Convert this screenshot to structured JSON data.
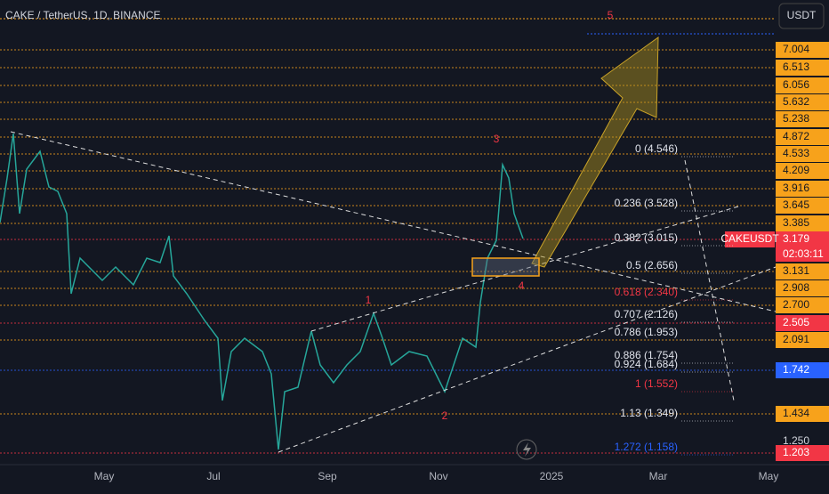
{
  "header": {
    "title": "CAKE / TetherUS, 1D, BINANCE",
    "currency": "USDT"
  },
  "price_axis": [
    {
      "label": "7.004",
      "kind": "level"
    },
    {
      "label": "6.513",
      "kind": "level"
    },
    {
      "label": "6.056",
      "kind": "level"
    },
    {
      "label": "5.632",
      "kind": "level"
    },
    {
      "label": "5.238",
      "kind": "level"
    },
    {
      "label": "4.872",
      "kind": "level"
    },
    {
      "label": "4.533",
      "kind": "level"
    },
    {
      "label": "4.209",
      "kind": "level"
    },
    {
      "label": "3.916",
      "kind": "level"
    },
    {
      "label": "3.645",
      "kind": "level"
    },
    {
      "label": "3.385",
      "kind": "level"
    },
    {
      "label": "3.179",
      "kind": "last"
    },
    {
      "label": "3.131",
      "kind": "level"
    },
    {
      "label": "2.908",
      "kind": "level"
    },
    {
      "label": "2.700",
      "kind": "level"
    },
    {
      "label": "2.505",
      "kind": "alert"
    },
    {
      "label": "2.091",
      "kind": "level"
    },
    {
      "label": "1.742",
      "kind": "blue"
    },
    {
      "label": "1.434",
      "kind": "level"
    },
    {
      "label": "1.250",
      "kind": "plain"
    },
    {
      "label": "1.203",
      "kind": "alert"
    }
  ],
  "last_price": {
    "symbol": "CAKEUSDT",
    "countdown": "02:03:11"
  },
  "fib_levels": [
    {
      "label": "0 (4.546)",
      "color": "white"
    },
    {
      "label": "0.236 (3.528)",
      "color": "white"
    },
    {
      "label": "0.382 (3.015)",
      "color": "white"
    },
    {
      "label": "0.5 (2.656)",
      "color": "white"
    },
    {
      "label": "0.618 (2.340)",
      "color": "red"
    },
    {
      "label": "0.707 (2.126)",
      "color": "white"
    },
    {
      "label": "0.786 (1.953)",
      "color": "white"
    },
    {
      "label": "0.886 (1.754)",
      "color": "white"
    },
    {
      "label": "0.924 (1.684)",
      "color": "white"
    },
    {
      "label": "1 (1.552)",
      "color": "red"
    },
    {
      "label": "1.13 (1.349)",
      "color": "white"
    },
    {
      "label": "1.272 (1.158)",
      "color": "blue"
    }
  ],
  "waves": [
    "1",
    "2",
    "3",
    "4",
    "5"
  ],
  "time_axis": [
    "May",
    "Jul",
    "Sep",
    "Nov",
    "2025",
    "Mar",
    "May"
  ]
}
